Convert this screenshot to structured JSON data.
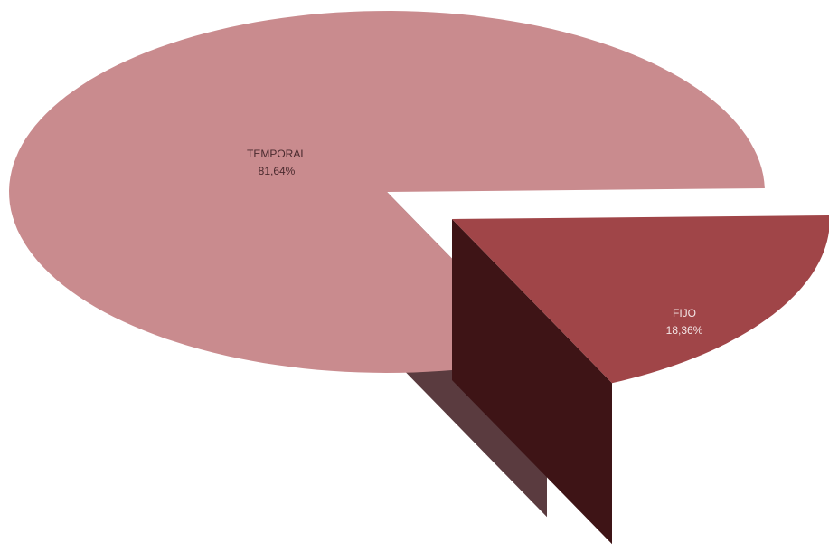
{
  "chart_data": {
    "type": "pie",
    "style": "3d-exploded",
    "slices": [
      {
        "label": "TEMPORAL",
        "value": 81.64,
        "value_text": "81,64%",
        "color": "#c98b8e",
        "side_color_light": "#a87a80",
        "side_color_dark": "#5a3c42",
        "cut_color": "#5a3b3f"
      },
      {
        "label": "FIJO",
        "value": 18.36,
        "value_text": "18,36%",
        "color": "#a04548",
        "side_color_light": "#5a1c1c",
        "side_color_dark": "#3a1212",
        "cut_color": "#3e1416",
        "exploded": true
      }
    ]
  }
}
